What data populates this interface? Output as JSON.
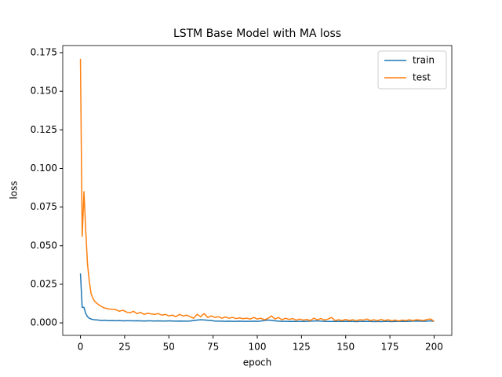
{
  "chart_data": {
    "type": "line",
    "title": "LSTM Base Model with MA loss",
    "x_label": "epoch",
    "y_label": "loss",
    "x": [
      0,
      1,
      2,
      3,
      4,
      5,
      6,
      7,
      8,
      10,
      12,
      14,
      16,
      18,
      20,
      22,
      24,
      26,
      28,
      30,
      32,
      34,
      36,
      38,
      40,
      42,
      44,
      46,
      48,
      50,
      52,
      54,
      56,
      58,
      60,
      62,
      64,
      66,
      68,
      70,
      72,
      74,
      76,
      78,
      80,
      82,
      84,
      86,
      88,
      90,
      92,
      94,
      96,
      98,
      100,
      102,
      104,
      106,
      108,
      110,
      112,
      114,
      116,
      118,
      120,
      122,
      124,
      126,
      128,
      130,
      132,
      134,
      136,
      138,
      140,
      142,
      144,
      146,
      148,
      150,
      152,
      154,
      156,
      158,
      160,
      162,
      164,
      166,
      168,
      170,
      172,
      174,
      176,
      178,
      180,
      182,
      184,
      186,
      188,
      190,
      192,
      194,
      196,
      198,
      200
    ],
    "series": [
      {
        "name": "train",
        "color": "#1f77b4",
        "values": [
          0.032,
          0.01,
          0.01,
          0.006,
          0.004,
          0.003,
          0.0025,
          0.0022,
          0.002,
          0.0018,
          0.0015,
          0.0017,
          0.0014,
          0.0015,
          0.0014,
          0.0015,
          0.0013,
          0.0014,
          0.0014,
          0.0013,
          0.0014,
          0.0013,
          0.0012,
          0.0013,
          0.0013,
          0.0012,
          0.0013,
          0.0012,
          0.0012,
          0.0013,
          0.0012,
          0.0011,
          0.0012,
          0.0011,
          0.0011,
          0.0012,
          0.0015,
          0.0018,
          0.002,
          0.0019,
          0.0017,
          0.0015,
          0.0012,
          0.0011,
          0.0011,
          0.001,
          0.0011,
          0.001,
          0.001,
          0.0011,
          0.001,
          0.001,
          0.001,
          0.0011,
          0.001,
          0.0012,
          0.0015,
          0.0018,
          0.0016,
          0.0013,
          0.0011,
          0.001,
          0.001,
          0.0009,
          0.001,
          0.0009,
          0.001,
          0.0009,
          0.001,
          0.0011,
          0.0012,
          0.0013,
          0.0011,
          0.001,
          0.0009,
          0.0009,
          0.001,
          0.0009,
          0.0009,
          0.001,
          0.0009,
          0.0009,
          0.0008,
          0.0009,
          0.0009,
          0.001,
          0.0009,
          0.0008,
          0.0009,
          0.0008,
          0.0009,
          0.0009,
          0.0008,
          0.0009,
          0.0009,
          0.001,
          0.0009,
          0.001,
          0.0011,
          0.0012,
          0.0011,
          0.001,
          0.0011,
          0.0013,
          0.001
        ]
      },
      {
        "name": "test",
        "color": "#ff7f0e",
        "values": [
          0.171,
          0.056,
          0.085,
          0.06,
          0.038,
          0.027,
          0.019,
          0.016,
          0.014,
          0.012,
          0.0105,
          0.0095,
          0.009,
          0.0088,
          0.0085,
          0.0075,
          0.0082,
          0.007,
          0.0065,
          0.0075,
          0.006,
          0.0068,
          0.0055,
          0.0062,
          0.0058,
          0.0055,
          0.006,
          0.005,
          0.0055,
          0.0045,
          0.005,
          0.004,
          0.0055,
          0.0045,
          0.005,
          0.004,
          0.003,
          0.0055,
          0.004,
          0.006,
          0.0035,
          0.0045,
          0.0035,
          0.004,
          0.003,
          0.0038,
          0.003,
          0.0035,
          0.0028,
          0.0032,
          0.0027,
          0.003,
          0.0025,
          0.0035,
          0.0025,
          0.003,
          0.002,
          0.0028,
          0.0045,
          0.0025,
          0.0035,
          0.002,
          0.003,
          0.0022,
          0.0028,
          0.0018,
          0.0025,
          0.0018,
          0.0022,
          0.0015,
          0.003,
          0.002,
          0.0028,
          0.0018,
          0.0025,
          0.0035,
          0.0015,
          0.002,
          0.0015,
          0.0022,
          0.0015,
          0.002,
          0.0014,
          0.002,
          0.0018,
          0.0025,
          0.0015,
          0.002,
          0.0014,
          0.0022,
          0.0015,
          0.002,
          0.0013,
          0.0018,
          0.0012,
          0.0018,
          0.0015,
          0.002,
          0.0015,
          0.002,
          0.0018,
          0.0015,
          0.0022,
          0.0025,
          0.001
        ]
      }
    ],
    "xlim": [
      -10,
      210
    ],
    "xticks": [
      0,
      25,
      50,
      75,
      100,
      125,
      150,
      175,
      200
    ],
    "ylim": [
      -0.0081,
      0.1796
    ],
    "yticks": [
      {
        "value": 0,
        "label": "0.000"
      },
      0.025,
      {
        "value": 0.05,
        "label": "0.050"
      },
      0.075,
      {
        "value": 0.1,
        "label": "0.100"
      },
      0.125,
      {
        "value": 0.15,
        "label": "0.150"
      },
      0.175
    ],
    "legend": "upper right"
  }
}
